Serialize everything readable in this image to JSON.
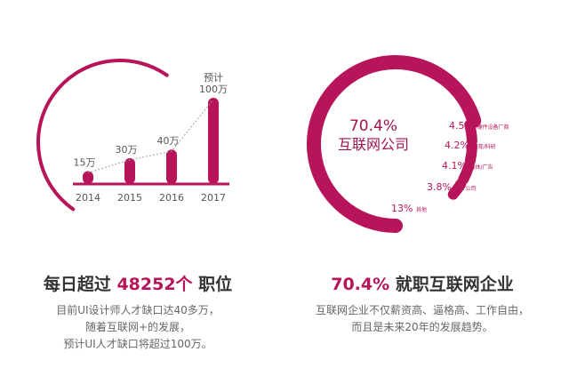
{
  "colors": {
    "accent": "#b8145a",
    "text": "#333333",
    "muted": "#666666"
  },
  "chart_data": [
    {
      "type": "bar",
      "categories": [
        "2014",
        "2015",
        "2016",
        "2017"
      ],
      "values": [
        15,
        30,
        40,
        100
      ],
      "data_labels": [
        "15万",
        "30万",
        "40万",
        "预计\n100万"
      ],
      "trend_line": "dotted"
    },
    {
      "type": "pie",
      "style": "donut",
      "center_label": {
        "value": "70.4%",
        "label": "互联网公司"
      },
      "slices": [
        {
          "label": "互联网公司",
          "value": 70.4,
          "display": "70.4%"
        },
        {
          "label": "硬件设备厂商",
          "value": 4.5,
          "display": "4.5%"
        },
        {
          "label": "教育/科研",
          "value": 4.2,
          "display": "4.2%"
        },
        {
          "label": "媒体/广告",
          "value": 4.1,
          "display": "4.1%"
        },
        {
          "label": "设计公司",
          "value": 3.8,
          "display": "3.8%"
        },
        {
          "label": "其他",
          "value": 13,
          "display": "13%"
        }
      ]
    }
  ],
  "left": {
    "title_pre": "每日超过 ",
    "title_num": "48252个",
    "title_post": " 职位",
    "lines": [
      "目前UI设计师人才缺口达40多万，",
      "随着互联网+的发展，",
      "预计UI人才缺口将超过100万。"
    ]
  },
  "right": {
    "title_num": "70.4%",
    "title_post": " 就职互联网企业",
    "lines": [
      "互联网企业不仅薪资高、逼格高、工作自由，",
      "而且是未来20年的发展趋势。"
    ]
  }
}
